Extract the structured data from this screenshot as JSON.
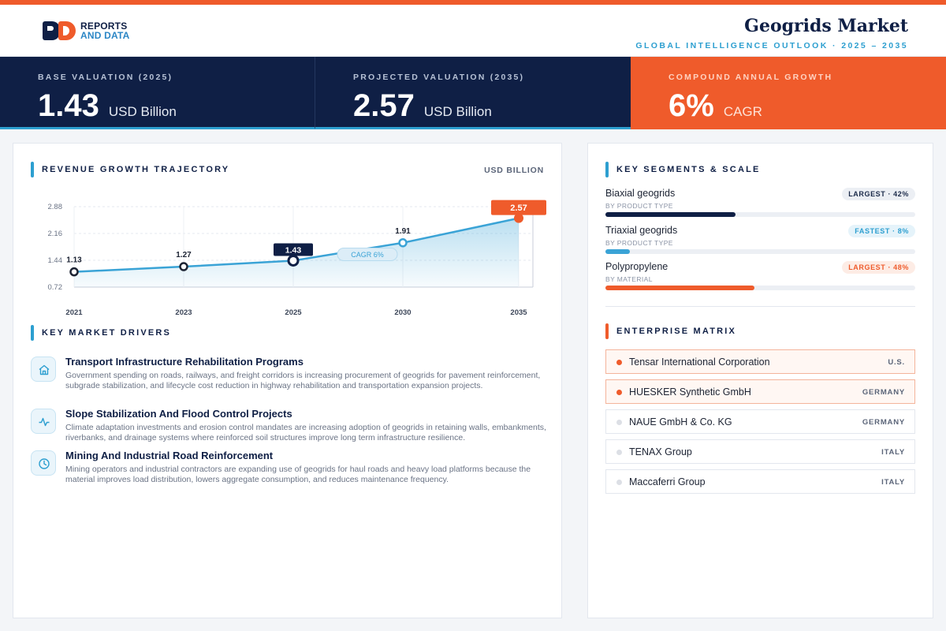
{
  "brand": {
    "line1": "REPORTS",
    "line2": "AND DATA"
  },
  "header": {
    "title": "Geogrids Market",
    "subtitle": "GLOBAL INTELLIGENCE OUTLOOK  ·  2025 – 2035"
  },
  "kpis": [
    {
      "label": "BASE VALUATION (2025)",
      "value": "1.43",
      "unit": "USD Billion"
    },
    {
      "label": "PROJECTED VALUATION (2035)",
      "value": "2.57",
      "unit": "USD Billion"
    },
    {
      "label": "COMPOUND ANNUAL GROWTH",
      "value": "6%",
      "unit": "CAGR"
    }
  ],
  "revenue": {
    "title": "REVENUE GROWTH TRAJECTORY",
    "unit_label": "USD BILLION"
  },
  "chart_data": {
    "type": "area",
    "title": "REVENUE GROWTH TRAJECTORY",
    "ylabel": "USD BILLION",
    "categories": [
      "2021",
      "2023",
      "2025",
      "2030",
      "2035"
    ],
    "values": [
      1.13,
      1.27,
      1.43,
      1.91,
      2.57
    ],
    "data_labels": [
      "1.13",
      "1.27",
      "1.43",
      "1.91",
      "2.57"
    ],
    "yticks": [
      "2.88",
      "2.16",
      "1.44",
      "0.72"
    ],
    "ylim": [
      0.72,
      2.88
    ],
    "grid": true,
    "annotation": "CAGR 6%",
    "colors": {
      "line": "#3aa3d6",
      "highlight": "#ef5b2b",
      "dark": "#0f1f45"
    }
  },
  "drivers": {
    "title": "KEY MARKET DRIVERS",
    "items": [
      {
        "icon": "home-icon",
        "title": "Transport Infrastructure Rehabilitation Programs",
        "desc": "Government spending on roads, railways, and freight corridors is increasing procurement of geogrids for pavement reinforcement, subgrade stabilization, and lifecycle cost reduction in highway rehabilitation and transportation expansion projects."
      },
      {
        "icon": "pulse-icon",
        "title": "Slope Stabilization And Flood Control Projects",
        "desc": "Climate adaptation investments and erosion control mandates are increasing adoption of geogrids in retaining walls, embankments, riverbanks, and drainage systems where reinforced soil structures improve long term infrastructure resilience."
      },
      {
        "icon": "clock-icon",
        "title": "Mining And Industrial Road Reinforcement",
        "desc": "Mining operators and industrial contractors are expanding use of geogrids for haul roads and heavy load platforms because the material improves load distribution, lowers aggregate consumption, and reduces maintenance frequency."
      }
    ]
  },
  "segments": {
    "title": "KEY SEGMENTS & SCALE",
    "items": [
      {
        "name": "Biaxial geogrids",
        "category": "BY PRODUCT TYPE",
        "badge": "LARGEST · 42%",
        "share": 0.42,
        "color": "#0f1f45"
      },
      {
        "name": "Triaxial geogrids",
        "category": "BY PRODUCT TYPE",
        "badge": "FASTEST · 8%",
        "share": 0.08,
        "color": "#3aa3d6"
      },
      {
        "name": "Polypropylene",
        "category": "BY MATERIAL",
        "badge": "LARGEST · 48%",
        "share": 0.48,
        "color": "#ef5b2b"
      }
    ]
  },
  "matrix": {
    "title": "ENTERPRISE MATRIX",
    "companies": [
      {
        "name": "Tensar International Corporation",
        "country": "U.S."
      },
      {
        "name": "HUESKER Synthetic GmbH",
        "country": "GERMANY"
      },
      {
        "name": "NAUE GmbH & Co. KG",
        "country": "GERMANY"
      },
      {
        "name": "TENAX Group",
        "country": "ITALY"
      },
      {
        "name": "Maccaferri Group",
        "country": "ITALY"
      }
    ]
  }
}
